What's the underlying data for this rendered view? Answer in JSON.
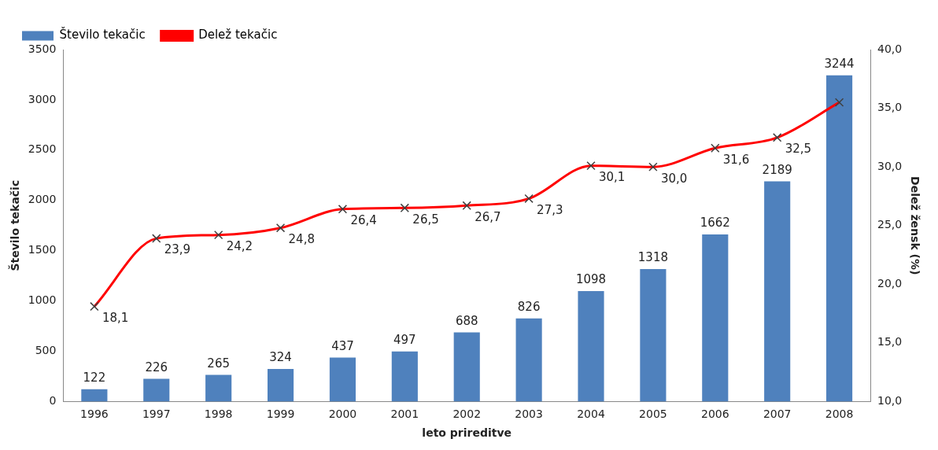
{
  "chart_data": {
    "type": "bar",
    "xlabel": "leto prireditve",
    "ylabel": "Število tekačic",
    "y2label": "Delež žensk (%)",
    "categories": [
      "1996",
      "1997",
      "1998",
      "1999",
      "2000",
      "2001",
      "2002",
      "2003",
      "2004",
      "2005",
      "2006",
      "2007",
      "2008"
    ],
    "series": [
      {
        "name": "Število tekačic",
        "color": "#4f81bd",
        "values": [
          122,
          226,
          265,
          324,
          437,
          497,
          688,
          826,
          1098,
          1318,
          1662,
          2189,
          3244
        ],
        "value_labels": [
          "122",
          "226",
          "265",
          "324",
          "437",
          "497",
          "688",
          "826",
          "1098",
          "1318",
          "1662",
          "2189",
          "3244"
        ]
      },
      {
        "name": "Delež tekačic",
        "type": "line",
        "axis": "y2",
        "color": "#ff0000",
        "marker": "cross",
        "values": [
          18.1,
          23.9,
          24.2,
          24.8,
          26.4,
          26.5,
          26.7,
          27.3,
          30.1,
          30.0,
          31.6,
          32.5,
          35.5
        ],
        "value_labels": [
          "18,1",
          "23,9",
          "24,2",
          "24,8",
          "26,4",
          "26,5",
          "26,7",
          "27,3",
          "30,1",
          "30,0",
          "31,6",
          "32,5",
          null
        ]
      }
    ],
    "ylim": [
      0,
      3500
    ],
    "yticks": [
      0,
      500,
      1000,
      1500,
      2000,
      2500,
      3000,
      3500
    ],
    "y2lim": [
      10,
      40
    ],
    "y2ticks": [
      {
        "value": 10,
        "label": "10,0"
      },
      {
        "value": 15,
        "label": "15,0"
      },
      {
        "value": 20,
        "label": "20,0"
      },
      {
        "value": 25,
        "label": "25,0"
      },
      {
        "value": 30,
        "label": "30,0"
      },
      {
        "value": 35,
        "label": "35,0"
      },
      {
        "value": 40,
        "label": "40,0"
      }
    ],
    "grid": false,
    "legend": "top left"
  }
}
